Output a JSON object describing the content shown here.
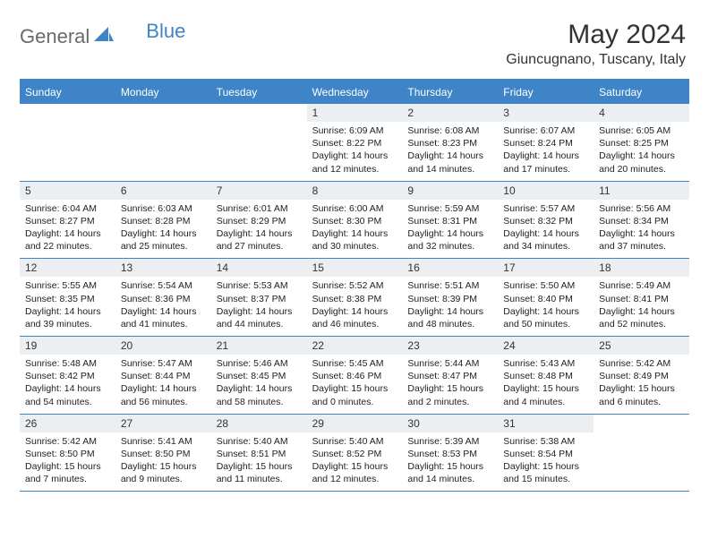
{
  "logo": {
    "text_general": "General",
    "text_blue": "Blue",
    "shape_color": "#3e84c6"
  },
  "title": "May 2024",
  "location": "Giuncugnano, Tuscany, Italy",
  "header_bg": "#3e84c6",
  "border_color": "#3e84c6",
  "daynum_bg": "#eceff1",
  "weekdays": [
    "Sunday",
    "Monday",
    "Tuesday",
    "Wednesday",
    "Thursday",
    "Friday",
    "Saturday"
  ],
  "weeks": [
    [
      null,
      null,
      null,
      {
        "num": "1",
        "sunrise": "Sunrise: 6:09 AM",
        "sunset": "Sunset: 8:22 PM",
        "daylight": "Daylight: 14 hours and 12 minutes."
      },
      {
        "num": "2",
        "sunrise": "Sunrise: 6:08 AM",
        "sunset": "Sunset: 8:23 PM",
        "daylight": "Daylight: 14 hours and 14 minutes."
      },
      {
        "num": "3",
        "sunrise": "Sunrise: 6:07 AM",
        "sunset": "Sunset: 8:24 PM",
        "daylight": "Daylight: 14 hours and 17 minutes."
      },
      {
        "num": "4",
        "sunrise": "Sunrise: 6:05 AM",
        "sunset": "Sunset: 8:25 PM",
        "daylight": "Daylight: 14 hours and 20 minutes."
      }
    ],
    [
      {
        "num": "5",
        "sunrise": "Sunrise: 6:04 AM",
        "sunset": "Sunset: 8:27 PM",
        "daylight": "Daylight: 14 hours and 22 minutes."
      },
      {
        "num": "6",
        "sunrise": "Sunrise: 6:03 AM",
        "sunset": "Sunset: 8:28 PM",
        "daylight": "Daylight: 14 hours and 25 minutes."
      },
      {
        "num": "7",
        "sunrise": "Sunrise: 6:01 AM",
        "sunset": "Sunset: 8:29 PM",
        "daylight": "Daylight: 14 hours and 27 minutes."
      },
      {
        "num": "8",
        "sunrise": "Sunrise: 6:00 AM",
        "sunset": "Sunset: 8:30 PM",
        "daylight": "Daylight: 14 hours and 30 minutes."
      },
      {
        "num": "9",
        "sunrise": "Sunrise: 5:59 AM",
        "sunset": "Sunset: 8:31 PM",
        "daylight": "Daylight: 14 hours and 32 minutes."
      },
      {
        "num": "10",
        "sunrise": "Sunrise: 5:57 AM",
        "sunset": "Sunset: 8:32 PM",
        "daylight": "Daylight: 14 hours and 34 minutes."
      },
      {
        "num": "11",
        "sunrise": "Sunrise: 5:56 AM",
        "sunset": "Sunset: 8:34 PM",
        "daylight": "Daylight: 14 hours and 37 minutes."
      }
    ],
    [
      {
        "num": "12",
        "sunrise": "Sunrise: 5:55 AM",
        "sunset": "Sunset: 8:35 PM",
        "daylight": "Daylight: 14 hours and 39 minutes."
      },
      {
        "num": "13",
        "sunrise": "Sunrise: 5:54 AM",
        "sunset": "Sunset: 8:36 PM",
        "daylight": "Daylight: 14 hours and 41 minutes."
      },
      {
        "num": "14",
        "sunrise": "Sunrise: 5:53 AM",
        "sunset": "Sunset: 8:37 PM",
        "daylight": "Daylight: 14 hours and 44 minutes."
      },
      {
        "num": "15",
        "sunrise": "Sunrise: 5:52 AM",
        "sunset": "Sunset: 8:38 PM",
        "daylight": "Daylight: 14 hours and 46 minutes."
      },
      {
        "num": "16",
        "sunrise": "Sunrise: 5:51 AM",
        "sunset": "Sunset: 8:39 PM",
        "daylight": "Daylight: 14 hours and 48 minutes."
      },
      {
        "num": "17",
        "sunrise": "Sunrise: 5:50 AM",
        "sunset": "Sunset: 8:40 PM",
        "daylight": "Daylight: 14 hours and 50 minutes."
      },
      {
        "num": "18",
        "sunrise": "Sunrise: 5:49 AM",
        "sunset": "Sunset: 8:41 PM",
        "daylight": "Daylight: 14 hours and 52 minutes."
      }
    ],
    [
      {
        "num": "19",
        "sunrise": "Sunrise: 5:48 AM",
        "sunset": "Sunset: 8:42 PM",
        "daylight": "Daylight: 14 hours and 54 minutes."
      },
      {
        "num": "20",
        "sunrise": "Sunrise: 5:47 AM",
        "sunset": "Sunset: 8:44 PM",
        "daylight": "Daylight: 14 hours and 56 minutes."
      },
      {
        "num": "21",
        "sunrise": "Sunrise: 5:46 AM",
        "sunset": "Sunset: 8:45 PM",
        "daylight": "Daylight: 14 hours and 58 minutes."
      },
      {
        "num": "22",
        "sunrise": "Sunrise: 5:45 AM",
        "sunset": "Sunset: 8:46 PM",
        "daylight": "Daylight: 15 hours and 0 minutes."
      },
      {
        "num": "23",
        "sunrise": "Sunrise: 5:44 AM",
        "sunset": "Sunset: 8:47 PM",
        "daylight": "Daylight: 15 hours and 2 minutes."
      },
      {
        "num": "24",
        "sunrise": "Sunrise: 5:43 AM",
        "sunset": "Sunset: 8:48 PM",
        "daylight": "Daylight: 15 hours and 4 minutes."
      },
      {
        "num": "25",
        "sunrise": "Sunrise: 5:42 AM",
        "sunset": "Sunset: 8:49 PM",
        "daylight": "Daylight: 15 hours and 6 minutes."
      }
    ],
    [
      {
        "num": "26",
        "sunrise": "Sunrise: 5:42 AM",
        "sunset": "Sunset: 8:50 PM",
        "daylight": "Daylight: 15 hours and 7 minutes."
      },
      {
        "num": "27",
        "sunrise": "Sunrise: 5:41 AM",
        "sunset": "Sunset: 8:50 PM",
        "daylight": "Daylight: 15 hours and 9 minutes."
      },
      {
        "num": "28",
        "sunrise": "Sunrise: 5:40 AM",
        "sunset": "Sunset: 8:51 PM",
        "daylight": "Daylight: 15 hours and 11 minutes."
      },
      {
        "num": "29",
        "sunrise": "Sunrise: 5:40 AM",
        "sunset": "Sunset: 8:52 PM",
        "daylight": "Daylight: 15 hours and 12 minutes."
      },
      {
        "num": "30",
        "sunrise": "Sunrise: 5:39 AM",
        "sunset": "Sunset: 8:53 PM",
        "daylight": "Daylight: 15 hours and 14 minutes."
      },
      {
        "num": "31",
        "sunrise": "Sunrise: 5:38 AM",
        "sunset": "Sunset: 8:54 PM",
        "daylight": "Daylight: 15 hours and 15 minutes."
      },
      null
    ]
  ]
}
